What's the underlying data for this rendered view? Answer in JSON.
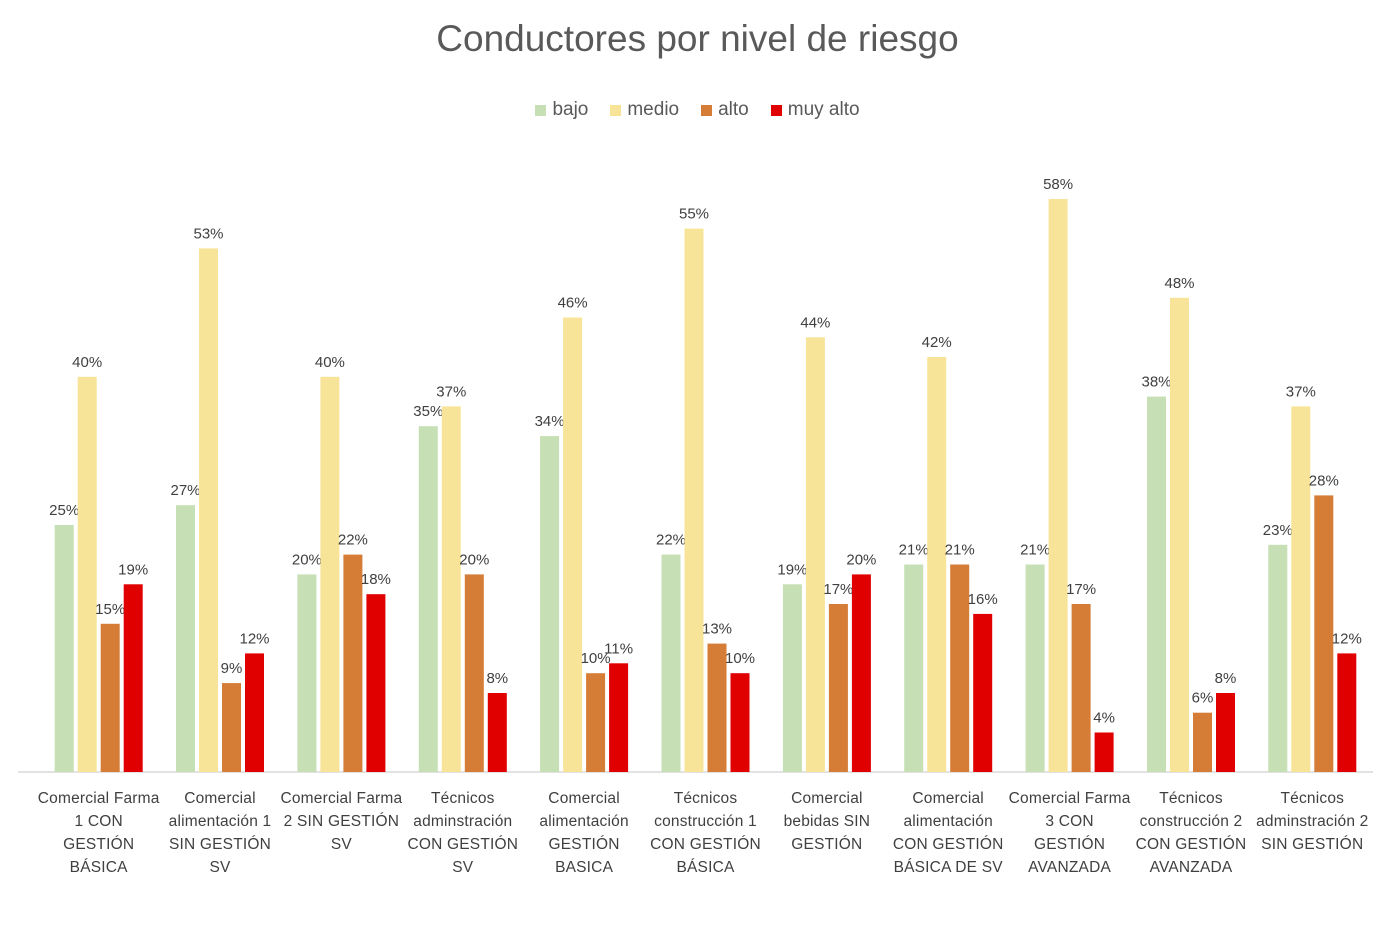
{
  "chart_data": {
    "type": "bar",
    "title": "Conductores por nivel de riesgo",
    "xlabel": "",
    "ylabel": "",
    "ylim": [
      0,
      60
    ],
    "grid": false,
    "legend_position": "top",
    "categories": [
      "Comercial Farma 1 CON GESTIÓN BÁSICA",
      "Comercial alimentación 1 SIN GESTIÓN SV",
      "Comercial Farma 2 SIN GESTIÓN SV",
      "Técnicos adminstración CON GESTIÓN SV",
      "Comercial alimentación GESTIÓN BASICA",
      "Técnicos construcción 1 CON GESTIÓN BÁSICA",
      "Comercial bebidas SIN GESTIÓN",
      "Comercial alimentación CON GESTIÓN BÁSICA DE SV",
      "Comercial Farma 3 CON GESTIÓN AVANZADA",
      "Técnicos construcción 2 CON GESTIÓN AVANZADA",
      "Técnicos adminstración 2 SIN GESTIÓN"
    ],
    "series": [
      {
        "name": "bajo",
        "color": "#c6dfb4",
        "values": [
          25,
          27,
          20,
          35,
          34,
          22,
          19,
          21,
          21,
          38,
          23
        ],
        "labels": [
          "25%",
          "27%",
          "20%",
          "35%",
          "34%",
          "22%",
          "19%",
          "21%",
          "21%",
          "38%",
          "23%"
        ]
      },
      {
        "name": "medio",
        "color": "#f8e498",
        "values": [
          40,
          53,
          40,
          37,
          46,
          55,
          44,
          42,
          58,
          48,
          37
        ],
        "labels": [
          "40%",
          "53%",
          "40%",
          "37%",
          "46%",
          "55%",
          "44%",
          "42%",
          "58%",
          "48%",
          "37%"
        ]
      },
      {
        "name": "alto",
        "color": "#d57c36",
        "values": [
          15,
          9,
          22,
          20,
          10,
          13,
          17,
          21,
          17,
          6,
          28
        ],
        "labels": [
          "15%",
          "9%",
          "22%",
          "20%",
          "10%",
          "13%",
          "17%",
          "21%",
          "17%",
          "6%",
          "28%"
        ]
      },
      {
        "name": "muy alto",
        "color": "#e00000",
        "values": [
          19,
          12,
          18,
          8,
          11,
          10,
          20,
          16,
          4,
          8,
          12
        ],
        "labels": [
          "19%",
          "12%",
          "18%",
          "8%",
          "11%",
          "10%",
          "20%",
          "16%",
          "4%",
          "8%",
          "12%"
        ]
      }
    ]
  }
}
